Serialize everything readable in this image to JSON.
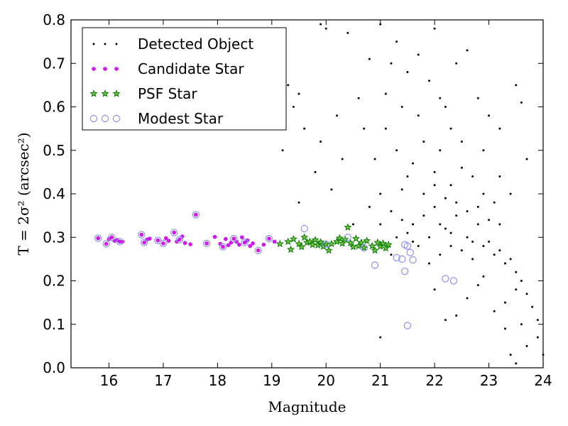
{
  "chart_data": {
    "type": "scatter",
    "xlabel": "Magnitude",
    "ylabel": "T = 2σ² (arcsec²)",
    "xlim": [
      15.3,
      24
    ],
    "ylim": [
      0,
      0.8
    ],
    "xticks": [
      "16",
      "17",
      "18",
      "19",
      "20",
      "21",
      "22",
      "23",
      "24"
    ],
    "yticks": [
      "0.0",
      "0.1",
      "0.2",
      "0.3",
      "0.4",
      "0.5",
      "0.6",
      "0.7",
      "0.8"
    ],
    "grid": false,
    "legend_position": "top-left",
    "colors": {
      "detected": "#000000",
      "candidate_fill": "#ff00ff",
      "candidate_edge": "#8a2be2",
      "psf_edge": "#008000",
      "psf_fill": "#7fbf3f",
      "modest_edge": "#9090ff"
    },
    "series": [
      {
        "name": "Detected Object",
        "marker": "dot",
        "points": [
          [
            19.9,
            0.79
          ],
          [
            20.0,
            0.78
          ],
          [
            19.3,
            0.65
          ],
          [
            19.4,
            0.6
          ],
          [
            19.5,
            0.63
          ],
          [
            19.2,
            0.5
          ],
          [
            19.6,
            0.55
          ],
          [
            19.8,
            0.45
          ],
          [
            19.5,
            0.38
          ],
          [
            19.9,
            0.52
          ],
          [
            20.1,
            0.41
          ],
          [
            20.3,
            0.48
          ],
          [
            20.5,
            0.33
          ],
          [
            20.2,
            0.58
          ],
          [
            20.6,
            0.62
          ],
          [
            20.8,
            0.71
          ],
          [
            20.4,
            0.77
          ],
          [
            21.0,
            0.79
          ],
          [
            21.2,
            0.7
          ],
          [
            21.3,
            0.75
          ],
          [
            21.5,
            0.68
          ],
          [
            21.7,
            0.72
          ],
          [
            21.9,
            0.66
          ],
          [
            22.0,
            0.78
          ],
          [
            22.2,
            0.6
          ],
          [
            22.4,
            0.7
          ],
          [
            22.6,
            0.73
          ],
          [
            22.8,
            0.62
          ],
          [
            23.0,
            0.58
          ],
          [
            23.2,
            0.55
          ],
          [
            23.5,
            0.65
          ],
          [
            23.6,
            0.61
          ],
          [
            23.7,
            0.48
          ],
          [
            21.1,
            0.55
          ],
          [
            21.3,
            0.5
          ],
          [
            21.6,
            0.47
          ],
          [
            21.8,
            0.52
          ],
          [
            22.0,
            0.45
          ],
          [
            22.1,
            0.5
          ],
          [
            22.3,
            0.42
          ],
          [
            22.5,
            0.46
          ],
          [
            22.7,
            0.44
          ],
          [
            22.9,
            0.4
          ],
          [
            23.1,
            0.38
          ],
          [
            21.0,
            0.4
          ],
          [
            21.2,
            0.36
          ],
          [
            21.4,
            0.41
          ],
          [
            21.6,
            0.33
          ],
          [
            21.8,
            0.35
          ],
          [
            22.0,
            0.37
          ],
          [
            22.2,
            0.32
          ],
          [
            22.4,
            0.35
          ],
          [
            22.6,
            0.3
          ],
          [
            22.8,
            0.33
          ],
          [
            23.0,
            0.29
          ],
          [
            23.2,
            0.27
          ],
          [
            23.4,
            0.25
          ],
          [
            23.5,
            0.22
          ],
          [
            23.6,
            0.2
          ],
          [
            23.7,
            0.17
          ],
          [
            23.8,
            0.14
          ],
          [
            23.9,
            0.11
          ],
          [
            23.9,
            0.07
          ],
          [
            24.0,
            0.03
          ],
          [
            23.5,
            0.01
          ],
          [
            23.4,
            0.03
          ],
          [
            23.6,
            0.1
          ],
          [
            23.3,
            0.15
          ],
          [
            22.9,
            0.21
          ],
          [
            22.7,
            0.25
          ],
          [
            22.5,
            0.27
          ],
          [
            22.3,
            0.28
          ],
          [
            22.1,
            0.26
          ],
          [
            21.9,
            0.3
          ],
          [
            21.7,
            0.28
          ],
          [
            21.5,
            0.31
          ],
          [
            22.2,
            0.11
          ],
          [
            22.4,
            0.12
          ],
          [
            22.0,
            0.18
          ],
          [
            22.6,
            0.16
          ],
          [
            21.0,
            0.07
          ],
          [
            21.2,
            0.26
          ],
          [
            21.9,
            0.24
          ],
          [
            22.8,
            0.19
          ],
          [
            23.1,
            0.13
          ],
          [
            23.3,
            0.09
          ],
          [
            23.7,
            0.05
          ],
          [
            22.1,
            0.62
          ],
          [
            22.3,
            0.55
          ],
          [
            21.4,
            0.6
          ],
          [
            21.7,
            0.58
          ],
          [
            20.9,
            0.48
          ],
          [
            20.7,
            0.55
          ],
          [
            21.1,
            0.63
          ],
          [
            22.5,
            0.52
          ],
          [
            22.9,
            0.5
          ],
          [
            23.2,
            0.44
          ],
          [
            23.4,
            0.4
          ],
          [
            21.5,
            0.44
          ],
          [
            21.8,
            0.4
          ],
          [
            22.0,
            0.42
          ],
          [
            22.2,
            0.39
          ],
          [
            22.4,
            0.38
          ],
          [
            22.6,
            0.36
          ],
          [
            22.8,
            0.37
          ],
          [
            23.0,
            0.34
          ],
          [
            23.2,
            0.33
          ],
          [
            21.3,
            0.3
          ],
          [
            21.6,
            0.29
          ],
          [
            22.1,
            0.33
          ],
          [
            22.3,
            0.31
          ],
          [
            22.7,
            0.29
          ],
          [
            22.9,
            0.28
          ],
          [
            23.1,
            0.26
          ],
          [
            23.3,
            0.24
          ],
          [
            23.5,
            0.18
          ],
          [
            21.0,
            0.33
          ],
          [
            20.8,
            0.37
          ],
          [
            21.4,
            0.34
          ]
        ]
      },
      {
        "name": "Candidate Star",
        "marker": "small-circle",
        "points": [
          [
            15.8,
            0.298
          ],
          [
            15.95,
            0.285
          ],
          [
            16.0,
            0.296
          ],
          [
            16.05,
            0.3
          ],
          [
            16.1,
            0.292
          ],
          [
            16.15,
            0.294
          ],
          [
            16.2,
            0.29
          ],
          [
            16.25,
            0.29
          ],
          [
            16.6,
            0.306
          ],
          [
            16.65,
            0.288
          ],
          [
            16.7,
            0.295
          ],
          [
            16.75,
            0.297
          ],
          [
            16.9,
            0.293
          ],
          [
            17.0,
            0.286
          ],
          [
            17.05,
            0.298
          ],
          [
            17.1,
            0.292
          ],
          [
            17.2,
            0.311
          ],
          [
            17.25,
            0.29
          ],
          [
            17.3,
            0.295
          ],
          [
            17.35,
            0.302
          ],
          [
            17.4,
            0.287
          ],
          [
            17.5,
            0.284
          ],
          [
            17.6,
            0.352
          ],
          [
            17.8,
            0.286
          ],
          [
            17.95,
            0.301
          ],
          [
            18.05,
            0.285
          ],
          [
            18.1,
            0.278
          ],
          [
            18.15,
            0.296
          ],
          [
            18.2,
            0.282
          ],
          [
            18.25,
            0.288
          ],
          [
            18.3,
            0.297
          ],
          [
            18.35,
            0.29
          ],
          [
            18.4,
            0.283
          ],
          [
            18.45,
            0.3
          ],
          [
            18.5,
            0.288
          ],
          [
            18.55,
            0.293
          ],
          [
            18.6,
            0.28
          ],
          [
            18.65,
            0.286
          ],
          [
            18.75,
            0.27
          ],
          [
            18.85,
            0.283
          ],
          [
            18.95,
            0.297
          ],
          [
            19.05,
            0.29
          ]
        ]
      },
      {
        "name": "PSF Star",
        "marker": "star",
        "points": [
          [
            19.15,
            0.285
          ],
          [
            19.3,
            0.29
          ],
          [
            19.35,
            0.272
          ],
          [
            19.4,
            0.296
          ],
          [
            19.5,
            0.285
          ],
          [
            19.55,
            0.278
          ],
          [
            19.6,
            0.3
          ],
          [
            19.65,
            0.288
          ],
          [
            19.7,
            0.29
          ],
          [
            19.75,
            0.283
          ],
          [
            19.8,
            0.294
          ],
          [
            19.85,
            0.282
          ],
          [
            19.9,
            0.289
          ],
          [
            19.95,
            0.279
          ],
          [
            20.0,
            0.284
          ],
          [
            20.05,
            0.27
          ],
          [
            20.1,
            0.285
          ],
          [
            20.2,
            0.29
          ],
          [
            20.25,
            0.298
          ],
          [
            20.3,
            0.286
          ],
          [
            20.35,
            0.295
          ],
          [
            20.4,
            0.323
          ],
          [
            20.45,
            0.287
          ],
          [
            20.5,
            0.278
          ],
          [
            20.55,
            0.297
          ],
          [
            20.6,
            0.28
          ],
          [
            20.65,
            0.288
          ],
          [
            20.7,
            0.276
          ],
          [
            20.75,
            0.292
          ],
          [
            20.85,
            0.28
          ],
          [
            20.9,
            0.27
          ],
          [
            20.95,
            0.288
          ],
          [
            21.0,
            0.279
          ],
          [
            21.05,
            0.286
          ],
          [
            21.1,
            0.275
          ],
          [
            21.15,
            0.283
          ]
        ]
      },
      {
        "name": "Modest Star",
        "marker": "open-circle",
        "points": [
          [
            15.8,
            0.298
          ],
          [
            15.95,
            0.285
          ],
          [
            16.05,
            0.3
          ],
          [
            16.2,
            0.29
          ],
          [
            16.6,
            0.306
          ],
          [
            16.65,
            0.288
          ],
          [
            16.9,
            0.293
          ],
          [
            17.0,
            0.286
          ],
          [
            17.2,
            0.311
          ],
          [
            17.3,
            0.295
          ],
          [
            17.6,
            0.352
          ],
          [
            17.8,
            0.286
          ],
          [
            18.1,
            0.278
          ],
          [
            18.3,
            0.297
          ],
          [
            18.5,
            0.288
          ],
          [
            18.75,
            0.27
          ],
          [
            18.95,
            0.297
          ],
          [
            19.6,
            0.32
          ],
          [
            20.0,
            0.284
          ],
          [
            20.4,
            0.3
          ],
          [
            20.7,
            0.276
          ],
          [
            20.9,
            0.236
          ],
          [
            21.3,
            0.253
          ],
          [
            21.4,
            0.25
          ],
          [
            21.45,
            0.222
          ],
          [
            21.5,
            0.28
          ],
          [
            21.55,
            0.265
          ],
          [
            21.6,
            0.248
          ],
          [
            21.45,
            0.283
          ],
          [
            21.5,
            0.097
          ],
          [
            22.2,
            0.205
          ],
          [
            22.35,
            0.2
          ]
        ]
      }
    ]
  }
}
